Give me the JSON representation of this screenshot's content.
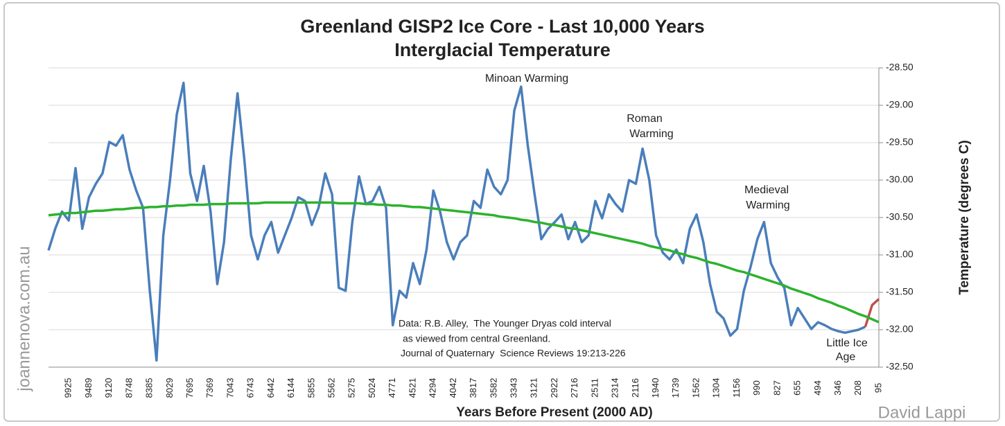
{
  "chart_data": {
    "type": "line",
    "title": [
      "Greenland GISP2 Ice Core - Last 10,000 Years",
      "Interglacial Temperature"
    ],
    "x_label": "Years Before Present (2000 AD)",
    "y_label": "Temperature (degrees C)",
    "annotations": [
      "Minoan Warming",
      "Roman",
      "Warming",
      "Medieval",
      "Warming",
      "Little Ice",
      "Age"
    ],
    "source_note": [
      "Data: R.B. Alley,  The Younger Dryas cold interval",
      "as viewed from central Greenland.",
      "Journal of Quaternary  Science Reviews 19:213-226"
    ],
    "watermarks": [
      "joannenova.com.au",
      "David Lappi"
    ],
    "categories": [
      null,
      null,
      null,
      "9925",
      null,
      null,
      "9489",
      null,
      null,
      "9120",
      null,
      null,
      "8748",
      null,
      null,
      "8385",
      null,
      null,
      "8029",
      null,
      null,
      "7695",
      null,
      null,
      "7369",
      null,
      null,
      "7043",
      null,
      null,
      "6743",
      null,
      null,
      "6442",
      null,
      null,
      "6144",
      null,
      null,
      "5855",
      null,
      null,
      "5562",
      null,
      null,
      "5275",
      null,
      null,
      "5024",
      null,
      null,
      "4771",
      null,
      null,
      "4521",
      null,
      null,
      "4294",
      null,
      null,
      "4042",
      null,
      null,
      "3817",
      null,
      null,
      "3582",
      null,
      null,
      "3343",
      null,
      null,
      "3121",
      null,
      null,
      "2922",
      null,
      null,
      "2716",
      null,
      null,
      "2511",
      null,
      null,
      "2314",
      null,
      null,
      "2116",
      null,
      null,
      "1940",
      null,
      null,
      "1739",
      null,
      null,
      "1562",
      null,
      null,
      "1304",
      null,
      null,
      "1156",
      null,
      null,
      "990",
      null,
      null,
      "827",
      null,
      null,
      "655",
      null,
      null,
      "494",
      null,
      null,
      "346",
      null,
      null,
      "208",
      null,
      null,
      "95"
    ],
    "series": [
      {
        "color": "#4a7ebb",
        "values": [
          -30.94,
          -30.65,
          -30.42,
          -30.54,
          -29.84,
          -30.65,
          -30.23,
          -30.05,
          -29.91,
          -29.49,
          -29.54,
          -29.4,
          -29.86,
          -30.14,
          -30.37,
          -31.48,
          -32.41,
          -30.74,
          -30.0,
          -29.12,
          -28.7,
          -29.91,
          -30.28,
          -29.81,
          -30.42,
          -31.39,
          -30.83,
          -29.72,
          -28.84,
          -29.72,
          -30.74,
          -31.06,
          -30.74,
          -30.56,
          -30.97,
          -30.74,
          -30.51,
          -30.23,
          -30.28,
          -30.6,
          -30.37,
          -29.91,
          -30.19,
          -31.44,
          -31.48,
          -30.56,
          -29.95,
          -30.32,
          -30.28,
          -30.09,
          -30.37,
          -31.94,
          -31.48,
          -31.57,
          -31.11,
          -31.39,
          -30.93,
          -30.14,
          -30.42,
          -30.83,
          -31.06,
          -30.83,
          -30.74,
          -30.28,
          -30.37,
          -29.86,
          -30.09,
          -30.19,
          -30.0,
          -29.07,
          -28.75,
          -29.54,
          -30.19,
          -30.79,
          -30.65,
          -30.56,
          -30.46,
          -30.79,
          -30.56,
          -30.83,
          -30.74,
          -30.28,
          -30.51,
          -30.19,
          -30.32,
          -30.42,
          -30.0,
          -30.05,
          -29.58,
          -30.0,
          -30.74,
          -30.97,
          -31.06,
          -30.93,
          -31.11,
          -30.65,
          -30.46,
          -30.83,
          -31.39,
          -31.76,
          -31.85,
          -32.08,
          -31.99,
          -31.48,
          -31.16,
          -30.79,
          -30.56,
          -31.11,
          -31.3,
          -31.44,
          -31.94,
          -31.71,
          -31.85,
          -31.99,
          -31.9,
          -31.94,
          -31.99,
          -32.02,
          -32.04,
          -32.02,
          -32.0,
          -31.96,
          null,
          null
        ]
      },
      {
        "color": "#c0504d",
        "values": [
          null,
          null,
          null,
          null,
          null,
          null,
          null,
          null,
          null,
          null,
          null,
          null,
          null,
          null,
          null,
          null,
          null,
          null,
          null,
          null,
          null,
          null,
          null,
          null,
          null,
          null,
          null,
          null,
          null,
          null,
          null,
          null,
          null,
          null,
          null,
          null,
          null,
          null,
          null,
          null,
          null,
          null,
          null,
          null,
          null,
          null,
          null,
          null,
          null,
          null,
          null,
          null,
          null,
          null,
          null,
          null,
          null,
          null,
          null,
          null,
          null,
          null,
          null,
          null,
          null,
          null,
          null,
          null,
          null,
          null,
          null,
          null,
          null,
          null,
          null,
          null,
          null,
          null,
          null,
          null,
          null,
          null,
          null,
          null,
          null,
          null,
          null,
          null,
          null,
          null,
          null,
          null,
          null,
          null,
          null,
          null,
          null,
          null,
          null,
          null,
          null,
          null,
          null,
          null,
          null,
          null,
          null,
          null,
          null,
          null,
          null,
          null,
          null,
          null,
          null,
          null,
          null,
          null,
          null,
          null,
          null,
          -31.96,
          -31.67,
          -31.59
        ]
      },
      {
        "color": "#2db22d",
        "values": [
          -30.47,
          -30.46,
          -30.45,
          -30.44,
          -30.44,
          -30.43,
          -30.42,
          -30.41,
          -30.41,
          -30.4,
          -30.39,
          -30.39,
          -30.38,
          -30.37,
          -30.37,
          -30.36,
          -30.36,
          -30.35,
          -30.35,
          -30.34,
          -30.34,
          -30.33,
          -30.33,
          -30.33,
          -30.32,
          -30.32,
          -30.32,
          -30.31,
          -30.31,
          -30.31,
          -30.31,
          -30.31,
          -30.3,
          -30.3,
          -30.3,
          -30.3,
          -30.3,
          -30.3,
          -30.3,
          -30.3,
          -30.3,
          -30.3,
          -30.3,
          -30.31,
          -30.31,
          -30.31,
          -30.31,
          -30.32,
          -30.32,
          -30.33,
          -30.33,
          -30.34,
          -30.34,
          -30.35,
          -30.36,
          -30.36,
          -30.37,
          -30.38,
          -30.39,
          -30.4,
          -30.41,
          -30.42,
          -30.43,
          -30.44,
          -30.45,
          -30.46,
          -30.47,
          -30.49,
          -30.5,
          -30.51,
          -30.53,
          -30.54,
          -30.56,
          -30.57,
          -30.59,
          -30.6,
          -30.62,
          -30.64,
          -30.65,
          -30.67,
          -30.69,
          -30.71,
          -30.73,
          -30.75,
          -30.77,
          -30.79,
          -30.81,
          -30.83,
          -30.85,
          -30.88,
          -30.9,
          -30.92,
          -30.94,
          -30.97,
          -30.99,
          -31.02,
          -31.04,
          -31.07,
          -31.1,
          -31.12,
          -31.15,
          -31.18,
          -31.21,
          -31.23,
          -31.26,
          -31.29,
          -31.32,
          -31.35,
          -31.38,
          -31.41,
          -31.45,
          -31.48,
          -31.51,
          -31.54,
          -31.58,
          -31.61,
          -31.64,
          -31.68,
          -31.71,
          -31.75,
          -31.79,
          -31.82,
          -31.86,
          -31.9
        ]
      }
    ],
    "ylim": [
      -28.5,
      -32.5
    ],
    "yticks": [
      {
        "value": -28.5,
        "label": "-28.50"
      },
      {
        "value": -29,
        "label": "-29.00"
      },
      {
        "value": -29.5,
        "label": "-29.50"
      },
      {
        "value": -30,
        "label": "-30.00"
      },
      {
        "value": -30.5,
        "label": "-30.50"
      },
      {
        "value": -31,
        "label": "-31.00"
      },
      {
        "value": -31.5,
        "label": "-31.50"
      },
      {
        "value": -32,
        "label": "-32.00"
      },
      {
        "value": -32.5,
        "label": "-32.50"
      }
    ],
    "grid": true
  }
}
